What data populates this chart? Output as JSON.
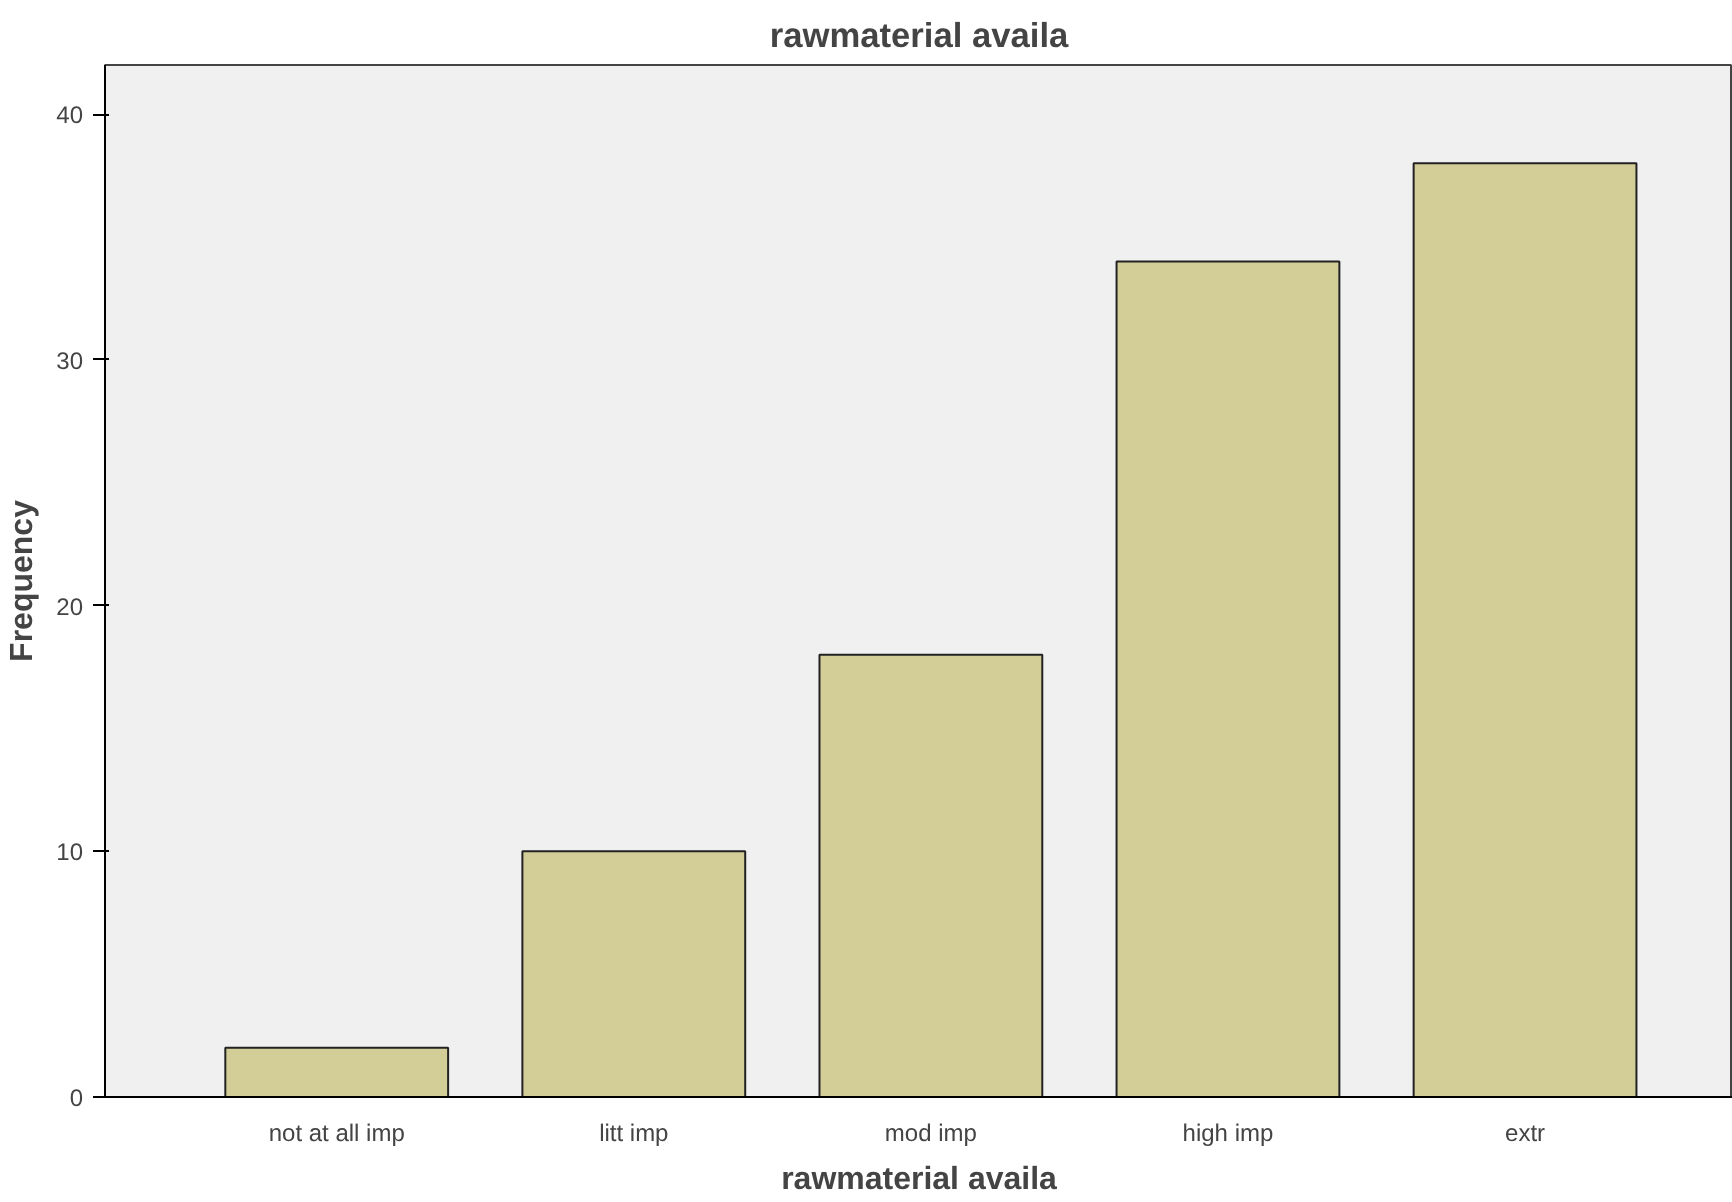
{
  "chart_data": {
    "type": "bar",
    "title": "rawmaterial availa",
    "xlabel": "rawmaterial availa",
    "ylabel": "Frequency",
    "categories": [
      "not at all imp",
      "litt imp",
      "mod imp",
      "high imp",
      "extr"
    ],
    "values": [
      2,
      10,
      18,
      34,
      38
    ],
    "color": "#d3ce97",
    "ylim": [
      0,
      42
    ],
    "yticks": [
      0,
      10,
      20,
      30,
      40
    ]
  }
}
